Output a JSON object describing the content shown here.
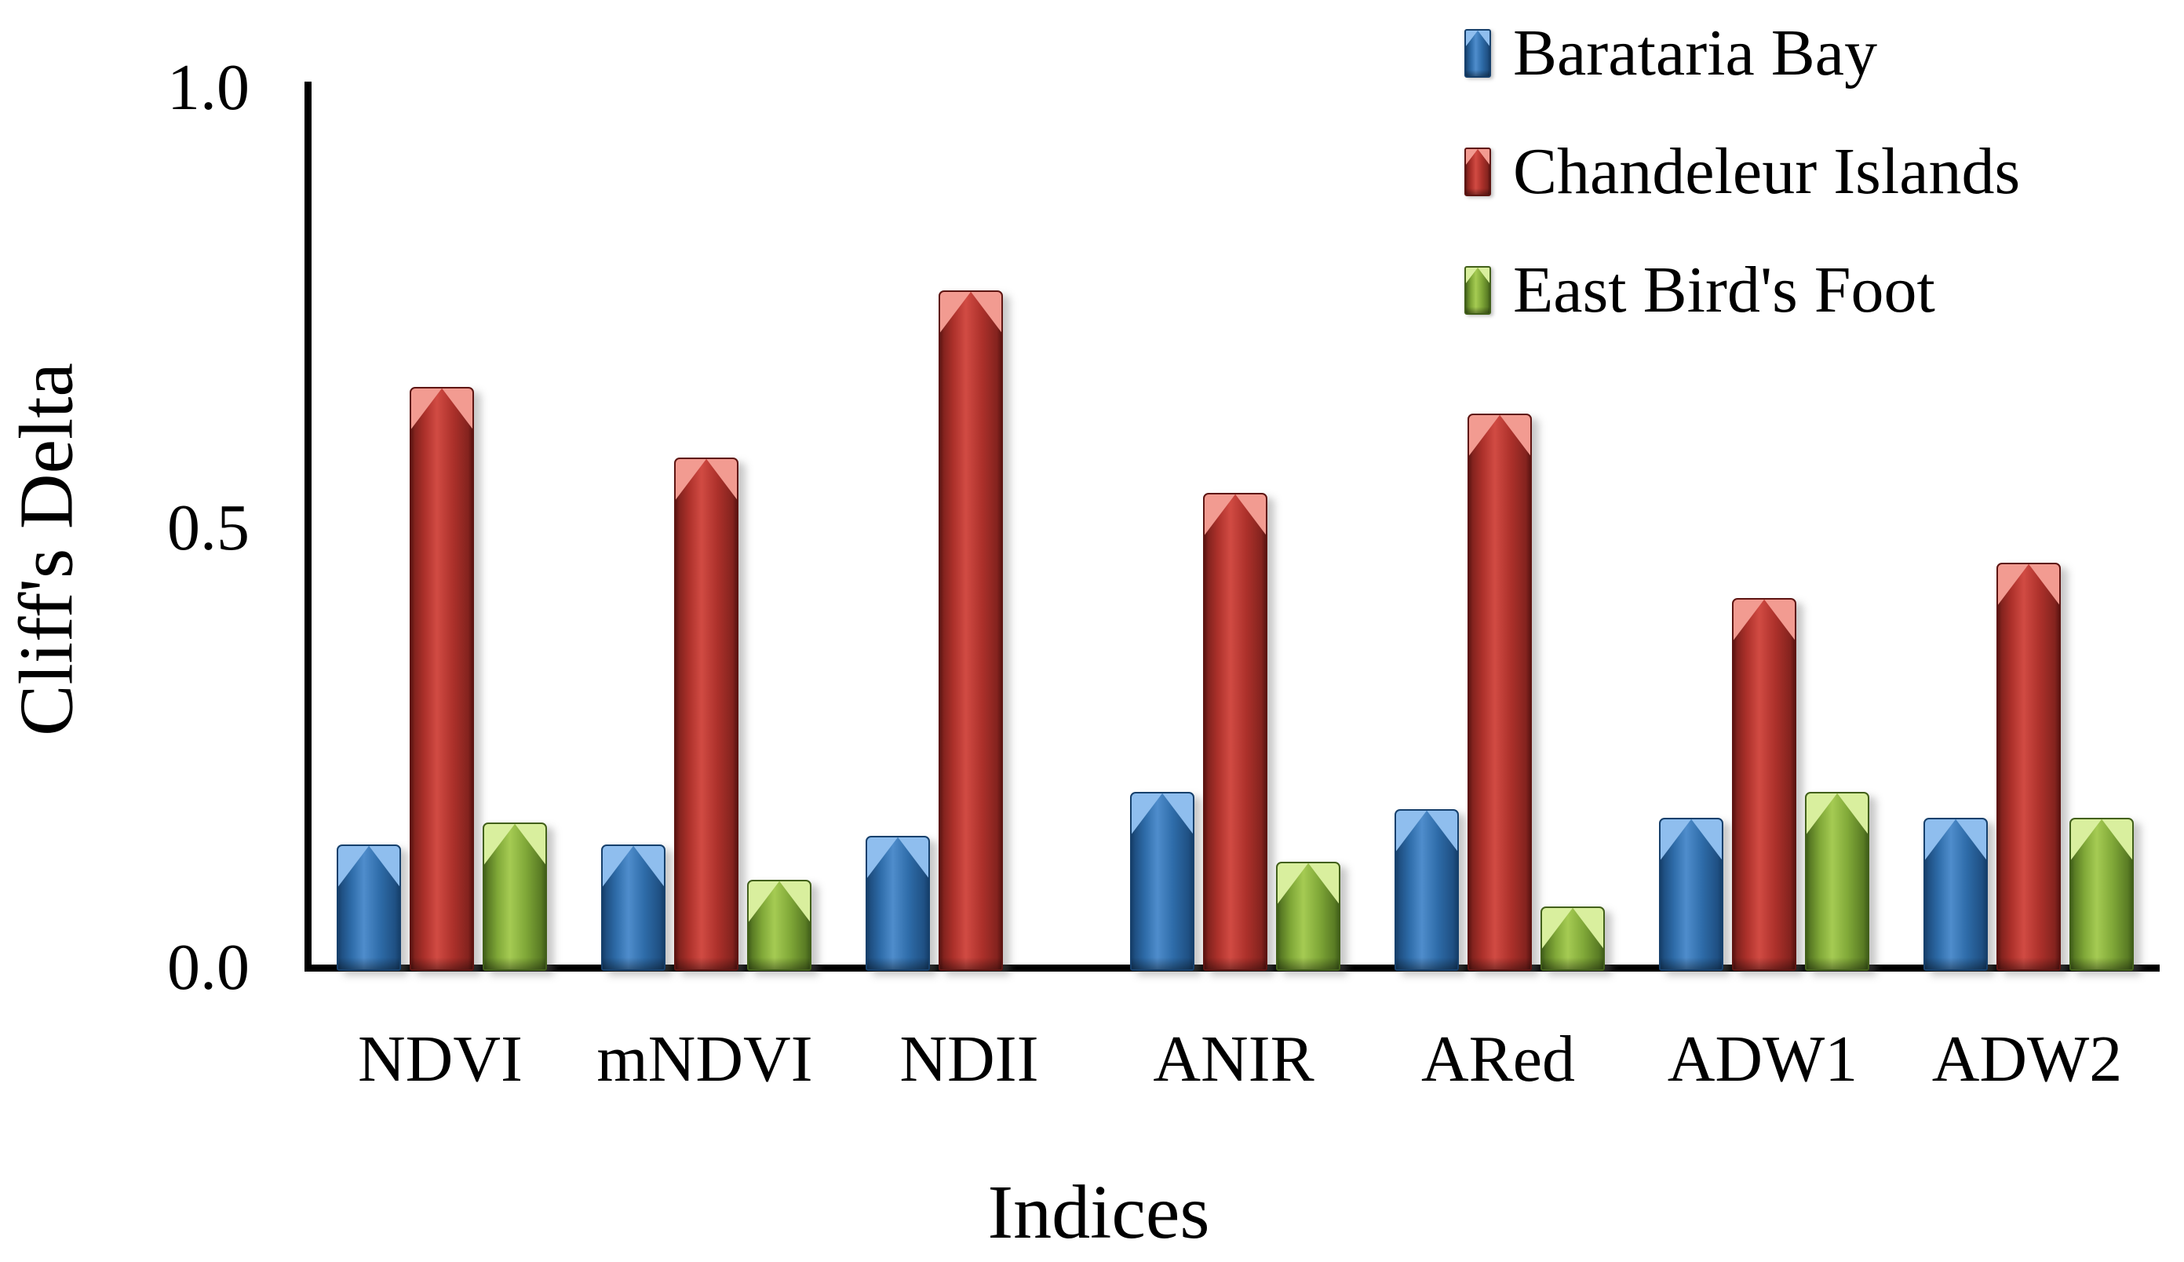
{
  "page": {
    "background": "#FFFFFF"
  },
  "chart_data": {
    "type": "bar",
    "title": "",
    "categories": [
      "NDVI",
      "mNDVI",
      "NDII",
      "ANIR",
      "ARed",
      "ADW1",
      "ADW2"
    ],
    "series": [
      {
        "name": "Barataria Bay",
        "color": "#2E6CA9",
        "values": [
          0.14,
          0.14,
          0.15,
          0.2,
          0.18,
          0.17,
          0.17
        ]
      },
      {
        "name": "Chandeleur Islands",
        "color": "#AD312B",
        "values": [
          0.66,
          0.58,
          0.77,
          0.54,
          0.63,
          0.42,
          0.46
        ]
      },
      {
        "name": "East Bird's Foot",
        "color": "#80A838",
        "values": [
          0.165,
          0.1,
          0,
          0.12,
          0.07,
          0.2,
          0.17
        ]
      }
    ],
    "xlabel": "Indices",
    "ylabel": "Cliff's Delta",
    "ylim": [
      0.0,
      1.0
    ],
    "ytick_labels": [
      "0.0",
      "0.5",
      "1.0"
    ],
    "legend_position": "top-right",
    "grid": false,
    "bar_style": "3d-bevel"
  }
}
